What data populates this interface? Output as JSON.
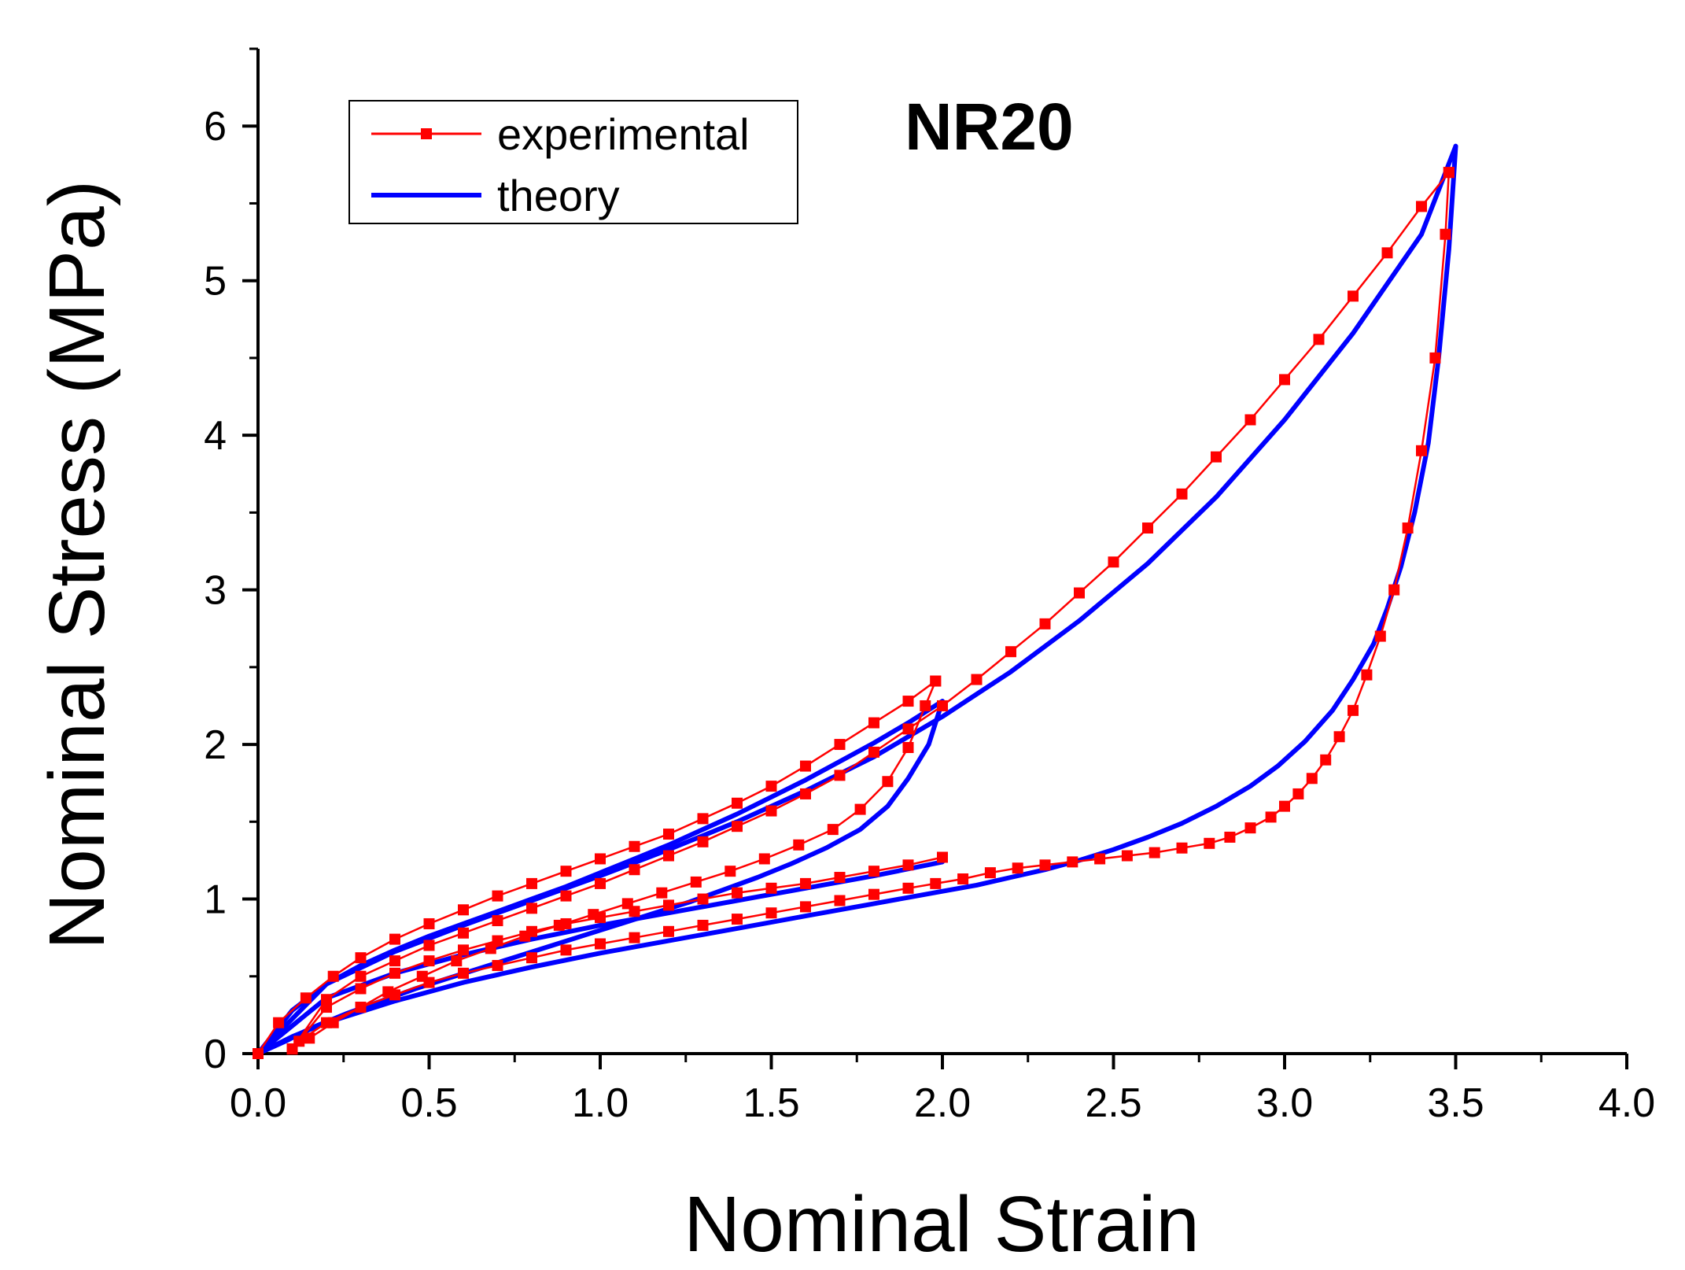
{
  "chart_data": {
    "type": "line",
    "title": "NR20",
    "xlabel": "Nominal Strain",
    "ylabel": "Nominal Stress (MPa)",
    "xlim": [
      0,
      4.0
    ],
    "ylim": [
      0,
      6.5
    ],
    "xticks": [
      "0.0",
      "0.5",
      "1.0",
      "1.5",
      "2.0",
      "2.5",
      "3.0",
      "3.5",
      "4.0"
    ],
    "yticks": [
      "0",
      "1",
      "2",
      "3",
      "4",
      "5",
      "6"
    ],
    "grid": false,
    "legend_position": "top-left",
    "colors": {
      "experimental": "#ff0000",
      "theory": "#0000ff"
    },
    "series": [
      {
        "name": "experimental",
        "marker": "square",
        "segments": [
          {
            "x": [
              0.0,
              0.06,
              0.14,
              0.22,
              0.3,
              0.4,
              0.5,
              0.6,
              0.7,
              0.8,
              0.9,
              1.0,
              1.1,
              1.2,
              1.3,
              1.4,
              1.5,
              1.6,
              1.7,
              1.8,
              1.9,
              1.98
            ],
            "y": [
              0.0,
              0.2,
              0.36,
              0.5,
              0.62,
              0.74,
              0.84,
              0.93,
              1.02,
              1.1,
              1.18,
              1.26,
              1.34,
              1.42,
              1.52,
              1.62,
              1.73,
              1.86,
              2.0,
              2.14,
              2.28,
              2.41
            ]
          },
          {
            "x": [
              1.98,
              1.95,
              1.9,
              1.84,
              1.76,
              1.68,
              1.58,
              1.48,
              1.38,
              1.28,
              1.18,
              1.08,
              0.98,
              0.88,
              0.78,
              0.68,
              0.58,
              0.48,
              0.38,
              0.3,
              0.22,
              0.15,
              0.1
            ],
            "y": [
              2.41,
              2.25,
              1.98,
              1.76,
              1.58,
              1.45,
              1.35,
              1.26,
              1.18,
              1.11,
              1.04,
              0.97,
              0.9,
              0.83,
              0.76,
              0.68,
              0.6,
              0.5,
              0.4,
              0.3,
              0.2,
              0.1,
              0.03
            ]
          },
          {
            "x": [
              0.1,
              0.2,
              0.3,
              0.4,
              0.5,
              0.6,
              0.7,
              0.8,
              0.9,
              1.0,
              1.1,
              1.2,
              1.3,
              1.4,
              1.5,
              1.6,
              1.7,
              1.8,
              1.9,
              2.0,
              2.1,
              2.2,
              2.3,
              2.4,
              2.5,
              2.6,
              2.7,
              2.8,
              2.9,
              3.0,
              3.1,
              3.2,
              3.3,
              3.4,
              3.48
            ],
            "y": [
              0.03,
              0.35,
              0.5,
              0.6,
              0.7,
              0.78,
              0.86,
              0.94,
              1.02,
              1.1,
              1.19,
              1.28,
              1.37,
              1.47,
              1.57,
              1.68,
              1.8,
              1.95,
              2.1,
              2.25,
              2.42,
              2.6,
              2.78,
              2.98,
              3.18,
              3.4,
              3.62,
              3.86,
              4.1,
              4.36,
              4.62,
              4.9,
              5.18,
              5.48,
              5.7
            ]
          },
          {
            "x": [
              3.48,
              3.47,
              3.44,
              3.4,
              3.36,
              3.32,
              3.28,
              3.24,
              3.2,
              3.16,
              3.12,
              3.08,
              3.04,
              3.0,
              2.96,
              2.9,
              2.84,
              2.78,
              2.7,
              2.62,
              2.54,
              2.46,
              2.38,
              2.3,
              2.22,
              2.14,
              2.06,
              1.98,
              1.9,
              1.8,
              1.7,
              1.6,
              1.5,
              1.4,
              1.3,
              1.2,
              1.1,
              1.0,
              0.9,
              0.8,
              0.7,
              0.6,
              0.5,
              0.4,
              0.3,
              0.2,
              0.12,
              0.1
            ],
            "y": [
              5.7,
              5.3,
              4.5,
              3.9,
              3.4,
              3.0,
              2.7,
              2.45,
              2.22,
              2.05,
              1.9,
              1.78,
              1.68,
              1.6,
              1.53,
              1.46,
              1.4,
              1.36,
              1.33,
              1.3,
              1.28,
              1.26,
              1.24,
              1.22,
              1.2,
              1.17,
              1.13,
              1.1,
              1.07,
              1.03,
              0.99,
              0.95,
              0.91,
              0.87,
              0.83,
              0.79,
              0.75,
              0.71,
              0.67,
              0.62,
              0.57,
              0.52,
              0.46,
              0.38,
              0.3,
              0.2,
              0.08,
              0.03
            ]
          },
          {
            "x": [
              0.1,
              0.2,
              0.3,
              0.4,
              0.5,
              0.6,
              0.7,
              0.8,
              0.9,
              1.0,
              1.1,
              1.2,
              1.3,
              1.4,
              1.5,
              1.6,
              1.7,
              1.8,
              1.9,
              2.0
            ],
            "y": [
              0.03,
              0.3,
              0.42,
              0.52,
              0.6,
              0.67,
              0.73,
              0.79,
              0.84,
              0.88,
              0.92,
              0.96,
              1.0,
              1.04,
              1.07,
              1.1,
              1.14,
              1.18,
              1.22,
              1.27
            ]
          }
        ]
      },
      {
        "name": "theory",
        "segments": [
          {
            "x": [
              0.0,
              0.1,
              0.2,
              0.3,
              0.4,
              0.5,
              0.6,
              0.7,
              0.8,
              0.9,
              1.0,
              1.1,
              1.2,
              1.3,
              1.4,
              1.5,
              1.6,
              1.7,
              1.8,
              1.9,
              2.0
            ],
            "y": [
              0.0,
              0.28,
              0.45,
              0.57,
              0.67,
              0.76,
              0.84,
              0.92,
              1.0,
              1.08,
              1.17,
              1.26,
              1.35,
              1.45,
              1.55,
              1.66,
              1.77,
              1.89,
              2.01,
              2.14,
              2.28
            ]
          },
          {
            "x": [
              2.0,
              1.96,
              1.9,
              1.84,
              1.76,
              1.66,
              1.56,
              1.46,
              1.36,
              1.26,
              1.16,
              1.06,
              0.96,
              0.86,
              0.76,
              0.66,
              0.56,
              0.46,
              0.36,
              0.26,
              0.16,
              0.08,
              0.0
            ],
            "y": [
              2.28,
              2.0,
              1.78,
              1.6,
              1.45,
              1.33,
              1.23,
              1.14,
              1.06,
              0.98,
              0.91,
              0.84,
              0.77,
              0.7,
              0.63,
              0.56,
              0.49,
              0.42,
              0.34,
              0.26,
              0.17,
              0.08,
              0.0
            ]
          },
          {
            "x": [
              0.0,
              0.2,
              0.4,
              0.6,
              0.8,
              1.0,
              1.2,
              1.4,
              1.6,
              1.8,
              2.0,
              2.2,
              2.4,
              2.6,
              2.8,
              3.0,
              3.2,
              3.4,
              3.5
            ],
            "y": [
              0.0,
              0.45,
              0.66,
              0.83,
              0.99,
              1.15,
              1.32,
              1.5,
              1.7,
              1.92,
              2.18,
              2.47,
              2.8,
              3.17,
              3.6,
              4.1,
              4.66,
              5.3,
              5.87
            ]
          },
          {
            "x": [
              3.5,
              3.48,
              3.45,
              3.42,
              3.38,
              3.34,
              3.3,
              3.26,
              3.2,
              3.14,
              3.06,
              2.98,
              2.9,
              2.8,
              2.7,
              2.6,
              2.5,
              2.4,
              2.3,
              2.2,
              2.1,
              2.0,
              1.8,
              1.6,
              1.4,
              1.2,
              1.0,
              0.8,
              0.6,
              0.4,
              0.2,
              0.1,
              0.0
            ],
            "y": [
              5.87,
              5.2,
              4.5,
              3.95,
              3.5,
              3.15,
              2.88,
              2.65,
              2.42,
              2.22,
              2.02,
              1.86,
              1.73,
              1.6,
              1.49,
              1.4,
              1.32,
              1.25,
              1.19,
              1.14,
              1.09,
              1.05,
              0.97,
              0.89,
              0.81,
              0.73,
              0.65,
              0.56,
              0.46,
              0.34,
              0.2,
              0.11,
              0.0
            ]
          },
          {
            "x": [
              0.0,
              0.2,
              0.4,
              0.6,
              0.8,
              1.0,
              1.2,
              1.4,
              1.6,
              1.8,
              2.0
            ],
            "y": [
              0.0,
              0.36,
              0.52,
              0.64,
              0.74,
              0.83,
              0.91,
              0.99,
              1.07,
              1.15,
              1.24
            ]
          }
        ]
      }
    ]
  }
}
